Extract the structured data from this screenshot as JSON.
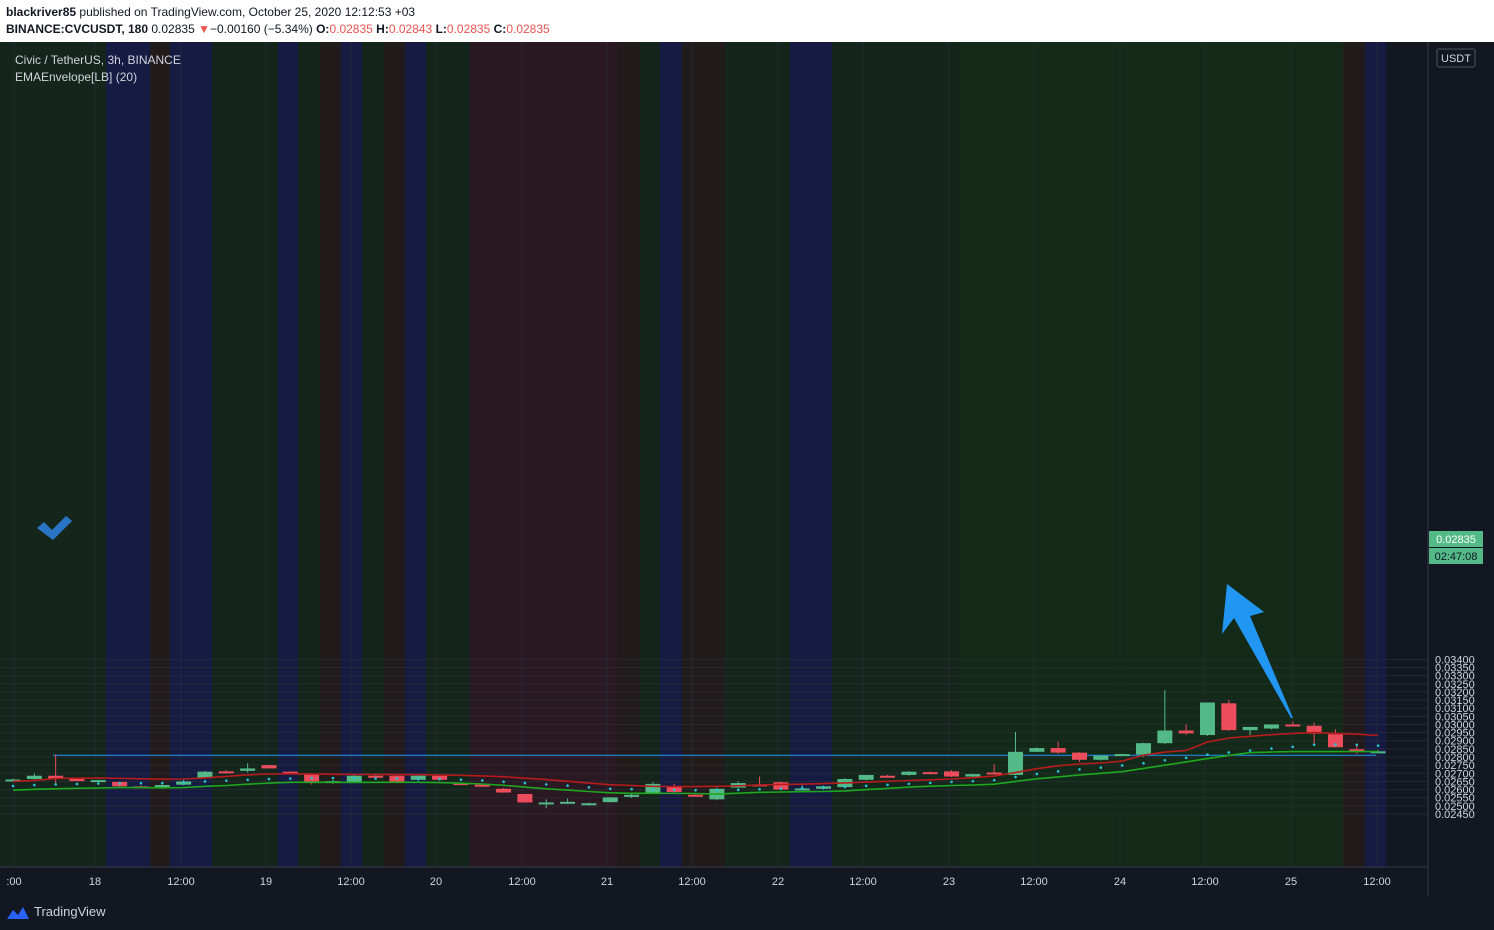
{
  "header": {
    "publisher": "blackriver85",
    "published_text": "published on TradingView.com, October 25, 2020 12:12:53 +03",
    "symbol": "BINANCE:CVCUSDT, 180",
    "last": "0.02835",
    "change_arrow": "▼",
    "change": "−0.00160 (−5.34%)",
    "o_label": "O:",
    "o": "0.02835",
    "h_label": "H:",
    "h": "0.02843",
    "l_label": "L:",
    "l": "0.02835",
    "c_label": "C:",
    "c": "0.02835"
  },
  "legend": {
    "title": "Civic / TetherUS, 3h, BINANCE",
    "indicator": "EMAEnvelope[LB] (20)"
  },
  "currency_label": "USDT",
  "price_tag": "0.02835",
  "countdown_tag": "02:47:08",
  "footer": {
    "brand": "TradingView"
  },
  "colors": {
    "background": "#131722",
    "up": "#53b987",
    "down": "#eb4d5c",
    "upper_band": "#b71c1c",
    "lower_band": "#1fa81f",
    "dots": "#26c6da",
    "hline": "#2196f3",
    "arrow": "#2196f3",
    "check": "#2a74c6"
  },
  "chart_data": {
    "type": "candlestick",
    "ylim": [
      0.0242,
      0.0344
    ],
    "y_ticks": [
      "0.02450",
      "0.02500",
      "0.02550",
      "0.02600",
      "0.02650",
      "0.02700",
      "0.02750",
      "0.02800",
      "0.02850",
      "0.02900",
      "0.02950",
      "0.03000",
      "0.03050",
      "0.03100",
      "0.03150",
      "0.03200",
      "0.03250",
      "0.03300",
      "0.03350",
      "0.03400"
    ],
    "x_ticks": [
      ":00",
      "18",
      "12:00",
      "19",
      "12:00",
      "20",
      "12:00",
      "21",
      "12:00",
      "22",
      "12:00",
      "23",
      "12:00",
      "24",
      "12:00",
      "25",
      "12:00"
    ],
    "horizontal_line": 0.02811,
    "candles": [
      {
        "o": 0.0266,
        "h": 0.02667,
        "l": 0.02659,
        "c": 0.02662
      },
      {
        "o": 0.02665,
        "h": 0.027,
        "l": 0.0266,
        "c": 0.02685
      },
      {
        "o": 0.02685,
        "h": 0.02815,
        "l": 0.0264,
        "c": 0.02668
      },
      {
        "o": 0.02667,
        "h": 0.0267,
        "l": 0.0265,
        "c": 0.02652
      },
      {
        "o": 0.02652,
        "h": 0.0266,
        "l": 0.0265,
        "c": 0.02658
      },
      {
        "o": 0.02647,
        "h": 0.0265,
        "l": 0.02615,
        "c": 0.0262
      },
      {
        "o": 0.0262,
        "h": 0.02625,
        "l": 0.0261,
        "c": 0.02618
      },
      {
        "o": 0.02618,
        "h": 0.0263,
        "l": 0.02605,
        "c": 0.02628
      },
      {
        "o": 0.0263,
        "h": 0.0266,
        "l": 0.02625,
        "c": 0.0265
      },
      {
        "o": 0.0267,
        "h": 0.02715,
        "l": 0.02668,
        "c": 0.0271
      },
      {
        "o": 0.02712,
        "h": 0.0272,
        "l": 0.027,
        "c": 0.02702
      },
      {
        "o": 0.02715,
        "h": 0.02762,
        "l": 0.02705,
        "c": 0.0273
      },
      {
        "o": 0.0275,
        "h": 0.02752,
        "l": 0.0273,
        "c": 0.0273
      },
      {
        "o": 0.0271,
        "h": 0.02712,
        "l": 0.02695,
        "c": 0.02697
      },
      {
        "o": 0.02697,
        "h": 0.027,
        "l": 0.0263,
        "c": 0.0264
      },
      {
        "o": 0.0264,
        "h": 0.0266,
        "l": 0.02635,
        "c": 0.02652
      },
      {
        "o": 0.02645,
        "h": 0.0269,
        "l": 0.0264,
        "c": 0.02685
      },
      {
        "o": 0.02685,
        "h": 0.0269,
        "l": 0.0267,
        "c": 0.0268
      },
      {
        "o": 0.02685,
        "h": 0.0269,
        "l": 0.0264,
        "c": 0.02648
      },
      {
        "o": 0.0266,
        "h": 0.0269,
        "l": 0.02645,
        "c": 0.02685
      },
      {
        "o": 0.02685,
        "h": 0.0269,
        "l": 0.02655,
        "c": 0.0266
      },
      {
        "o": 0.0264,
        "h": 0.02645,
        "l": 0.02625,
        "c": 0.0263
      },
      {
        "o": 0.0263,
        "h": 0.02632,
        "l": 0.02615,
        "c": 0.02618
      },
      {
        "o": 0.02605,
        "h": 0.0261,
        "l": 0.0258,
        "c": 0.02582
      },
      {
        "o": 0.02573,
        "h": 0.02575,
        "l": 0.02518,
        "c": 0.02521
      },
      {
        "o": 0.02521,
        "h": 0.0254,
        "l": 0.02485,
        "c": 0.02521
      },
      {
        "o": 0.02518,
        "h": 0.02545,
        "l": 0.02512,
        "c": 0.02525
      },
      {
        "o": 0.0251,
        "h": 0.0252,
        "l": 0.02502,
        "c": 0.02516
      },
      {
        "o": 0.02523,
        "h": 0.02555,
        "l": 0.0252,
        "c": 0.02552
      },
      {
        "o": 0.02555,
        "h": 0.02575,
        "l": 0.02548,
        "c": 0.02568
      },
      {
        "o": 0.02582,
        "h": 0.02645,
        "l": 0.02578,
        "c": 0.02635
      },
      {
        "o": 0.0262,
        "h": 0.02635,
        "l": 0.0258,
        "c": 0.02585
      },
      {
        "o": 0.02568,
        "h": 0.02572,
        "l": 0.02562,
        "c": 0.02565
      },
      {
        "o": 0.0254,
        "h": 0.02612,
        "l": 0.02535,
        "c": 0.02605
      },
      {
        "o": 0.02612,
        "h": 0.0265,
        "l": 0.02608,
        "c": 0.0264
      },
      {
        "o": 0.02632,
        "h": 0.0268,
        "l": 0.02625,
        "c": 0.0263
      },
      {
        "o": 0.02645,
        "h": 0.0265,
        "l": 0.026,
        "c": 0.026
      },
      {
        "o": 0.02602,
        "h": 0.0263,
        "l": 0.026,
        "c": 0.02607
      },
      {
        "o": 0.02605,
        "h": 0.02625,
        "l": 0.026,
        "c": 0.0262
      },
      {
        "o": 0.02615,
        "h": 0.0267,
        "l": 0.02612,
        "c": 0.02665
      },
      {
        "o": 0.0266,
        "h": 0.0269,
        "l": 0.02655,
        "c": 0.0269
      },
      {
        "o": 0.02685,
        "h": 0.0269,
        "l": 0.02678,
        "c": 0.0268
      },
      {
        "o": 0.0269,
        "h": 0.02713,
        "l": 0.02685,
        "c": 0.0271
      },
      {
        "o": 0.02707,
        "h": 0.02712,
        "l": 0.02697,
        "c": 0.02697
      },
      {
        "o": 0.02712,
        "h": 0.0272,
        "l": 0.02677,
        "c": 0.0268
      },
      {
        "o": 0.0268,
        "h": 0.02698,
        "l": 0.02678,
        "c": 0.02695
      },
      {
        "o": 0.02705,
        "h": 0.02755,
        "l": 0.027,
        "c": 0.02702
      },
      {
        "o": 0.0269,
        "h": 0.02955,
        "l": 0.02688,
        "c": 0.02832
      },
      {
        "o": 0.02832,
        "h": 0.0286,
        "l": 0.0283,
        "c": 0.02855
      },
      {
        "o": 0.02855,
        "h": 0.02895,
        "l": 0.0282,
        "c": 0.02827
      },
      {
        "o": 0.02827,
        "h": 0.0283,
        "l": 0.0277,
        "c": 0.02783
      },
      {
        "o": 0.02783,
        "h": 0.0281,
        "l": 0.02778,
        "c": 0.02808
      },
      {
        "o": 0.02815,
        "h": 0.0282,
        "l": 0.0281,
        "c": 0.02818
      },
      {
        "o": 0.02815,
        "h": 0.02888,
        "l": 0.028,
        "c": 0.02885
      },
      {
        "o": 0.02885,
        "h": 0.0321,
        "l": 0.0288,
        "c": 0.02963
      },
      {
        "o": 0.02963,
        "h": 0.03,
        "l": 0.02935,
        "c": 0.02945
      },
      {
        "o": 0.02935,
        "h": 0.03135,
        "l": 0.0293,
        "c": 0.03135
      },
      {
        "o": 0.0313,
        "h": 0.0315,
        "l": 0.0296,
        "c": 0.02965
      },
      {
        "o": 0.02965,
        "h": 0.02985,
        "l": 0.02935,
        "c": 0.02985
      },
      {
        "o": 0.02975,
        "h": 0.03,
        "l": 0.0297,
        "c": 0.03
      },
      {
        "o": 0.03,
        "h": 0.03018,
        "l": 0.02995,
        "c": 0.02995
      },
      {
        "o": 0.02992,
        "h": 0.0301,
        "l": 0.02875,
        "c": 0.02943
      },
      {
        "o": 0.0294,
        "h": 0.0297,
        "l": 0.0286,
        "c": 0.0286
      },
      {
        "o": 0.02848,
        "h": 0.0288,
        "l": 0.0282,
        "c": 0.02835
      },
      {
        "o": 0.02835,
        "h": 0.02843,
        "l": 0.02835,
        "c": 0.02835
      }
    ],
    "upper_band": [
      0.0265,
      0.02655,
      0.02668,
      0.0267,
      0.02671,
      0.02669,
      0.02666,
      0.02664,
      0.02665,
      0.02672,
      0.02681,
      0.02691,
      0.02696,
      0.02697,
      0.02695,
      0.02694,
      0.02693,
      0.02693,
      0.02692,
      0.02692,
      0.0269,
      0.02688,
      0.02684,
      0.02679,
      0.0267,
      0.02661,
      0.02651,
      0.0264,
      0.0263,
      0.02625,
      0.0262,
      0.02618,
      0.02618,
      0.0262,
      0.02623,
      0.02628,
      0.02632,
      0.02633,
      0.02637,
      0.02641,
      0.02646,
      0.02651,
      0.02656,
      0.0266,
      0.02665,
      0.02673,
      0.02683,
      0.02705,
      0.02728,
      0.02746,
      0.02758,
      0.02763,
      0.02775,
      0.02812,
      0.0283,
      0.0284,
      0.02892,
      0.02917,
      0.02927,
      0.02937,
      0.02945,
      0.0295,
      0.02945,
      0.0294,
      0.02932
    ],
    "lower_band": [
      0.02596,
      0.02602,
      0.02605,
      0.02608,
      0.0261,
      0.02612,
      0.02612,
      0.02611,
      0.02612,
      0.0262,
      0.02625,
      0.02633,
      0.0264,
      0.02645,
      0.02645,
      0.02645,
      0.02644,
      0.02645,
      0.02645,
      0.02645,
      0.02643,
      0.02639,
      0.02634,
      0.02626,
      0.02615,
      0.02605,
      0.02597,
      0.02588,
      0.0258,
      0.02577,
      0.02577,
      0.02577,
      0.02576,
      0.02572,
      0.02578,
      0.02583,
      0.02585,
      0.02587,
      0.02588,
      0.02592,
      0.026,
      0.02607,
      0.02615,
      0.02621,
      0.02625,
      0.02628,
      0.02633,
      0.0265,
      0.02666,
      0.02678,
      0.0269,
      0.027,
      0.0271,
      0.0273,
      0.0275,
      0.0277,
      0.0279,
      0.0281,
      0.02827,
      0.02831,
      0.02833,
      0.02833,
      0.02833,
      0.02833,
      0.02833
    ],
    "dots": [
      0.02622,
      0.02628,
      0.02632,
      0.02634,
      0.02637,
      0.02638,
      0.02639,
      0.0264,
      0.02645,
      0.0265,
      0.02655,
      0.0266,
      0.02665,
      0.02668,
      0.0267,
      0.02671,
      0.0267,
      0.02668,
      0.02668,
      0.02667,
      0.02665,
      0.02661,
      0.02656,
      0.02648,
      0.0264,
      0.02632,
      0.02624,
      0.02614,
      0.02605,
      0.02603,
      0.026,
      0.02598,
      0.02596,
      0.02596,
      0.02598,
      0.02602,
      0.02605,
      0.02608,
      0.02612,
      0.02616,
      0.02623,
      0.02629,
      0.02635,
      0.02641,
      0.02647,
      0.02652,
      0.02658,
      0.02677,
      0.02696,
      0.02712,
      0.02724,
      0.02735,
      0.02748,
      0.02762,
      0.0278,
      0.02795,
      0.02815,
      0.02828,
      0.0284,
      0.02852,
      0.02863,
      0.02875,
      0.02877,
      0.02875,
      0.0287
    ]
  }
}
